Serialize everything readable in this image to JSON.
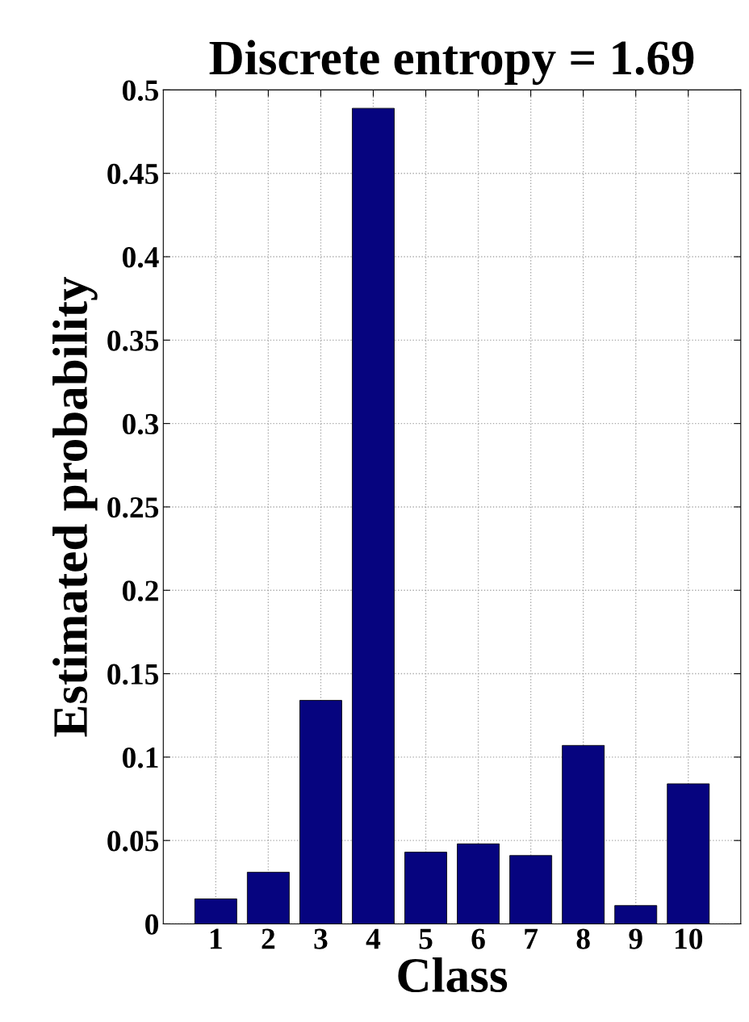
{
  "chart_data": {
    "type": "bar",
    "title": "Discrete entropy = 1.69",
    "xlabel": "Class",
    "ylabel": "Estimated probability",
    "x": [
      1,
      2,
      3,
      4,
      5,
      6,
      7,
      8,
      9,
      10
    ],
    "values": [
      0.015,
      0.031,
      0.134,
      0.489,
      0.043,
      0.048,
      0.041,
      0.107,
      0.011,
      0.084
    ],
    "color": "#06047f",
    "xlim": [
      0,
      11
    ],
    "xticks": [
      1,
      2,
      3,
      4,
      5,
      6,
      7,
      8,
      9,
      10
    ],
    "ylim": [
      0,
      0.5
    ],
    "yticks": [
      0,
      0.05,
      0.1,
      0.15,
      0.2,
      0.25,
      0.3,
      0.35,
      0.4,
      0.45,
      0.5
    ],
    "grid": true
  }
}
